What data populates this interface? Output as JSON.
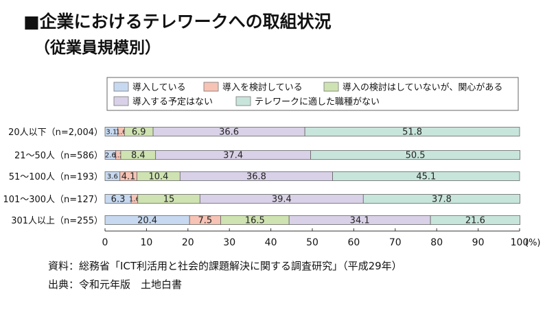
{
  "title": "■企業におけるテレワークへの取組状況",
  "subtitle": "（従業員規模別）",
  "source": "資料：総務省「ICT利活用と社会的課題解決に関する調査研究」（平成29年）",
  "origin": "出典：令和元年版　土地白書",
  "chart_data": {
    "type": "bar",
    "orientation": "horizontal",
    "stacked": true,
    "categories": [
      "20人以下（n=2,004）",
      "21〜50人（n=586）",
      "51〜100人（n=193）",
      "101〜300人（n=127）",
      "301人以上（n=255）"
    ],
    "series": [
      {
        "name": "導入している",
        "color": "#c7d9f0",
        "values": [
          3.1,
          2.6,
          3.6,
          6.3,
          20.4
        ]
      },
      {
        "name": "導入を検討している",
        "color": "#f6c3b4",
        "values": [
          1.6,
          1.2,
          4.1,
          1.6,
          7.5
        ]
      },
      {
        "name": "導入の検討はしていないが、関心がある",
        "color": "#cfe3b2",
        "values": [
          6.9,
          8.4,
          10.4,
          15,
          16.5
        ]
      },
      {
        "name": "導入する予定はない",
        "color": "#d9d1e7",
        "values": [
          36.6,
          37.4,
          36.8,
          39.4,
          34.1
        ]
      },
      {
        "name": "テレワークに適した職種がない",
        "color": "#c8e5dc",
        "values": [
          51.8,
          50.5,
          45.1,
          37.8,
          21.6
        ]
      }
    ],
    "labels": [
      [
        "3.1",
        "1.6",
        "6.9",
        "36.6",
        "51.8"
      ],
      [
        "2.6",
        "1.2",
        "8.4",
        "37.4",
        "50.5"
      ],
      [
        "3.6",
        "4.1",
        "10.4",
        "36.8",
        "45.1"
      ],
      [
        "6.3",
        "1.6",
        "15",
        "39.4",
        "37.8"
      ],
      [
        "20.4",
        "7.5",
        "16.5",
        "34.1",
        "21.6"
      ]
    ],
    "x_ticks": [
      "0",
      "10",
      "20",
      "30",
      "40",
      "50",
      "60",
      "70",
      "80",
      "90",
      "100"
    ],
    "x_unit": "(%)",
    "xlim": [
      0,
      100
    ],
    "grid": false,
    "legend_position": "top"
  }
}
